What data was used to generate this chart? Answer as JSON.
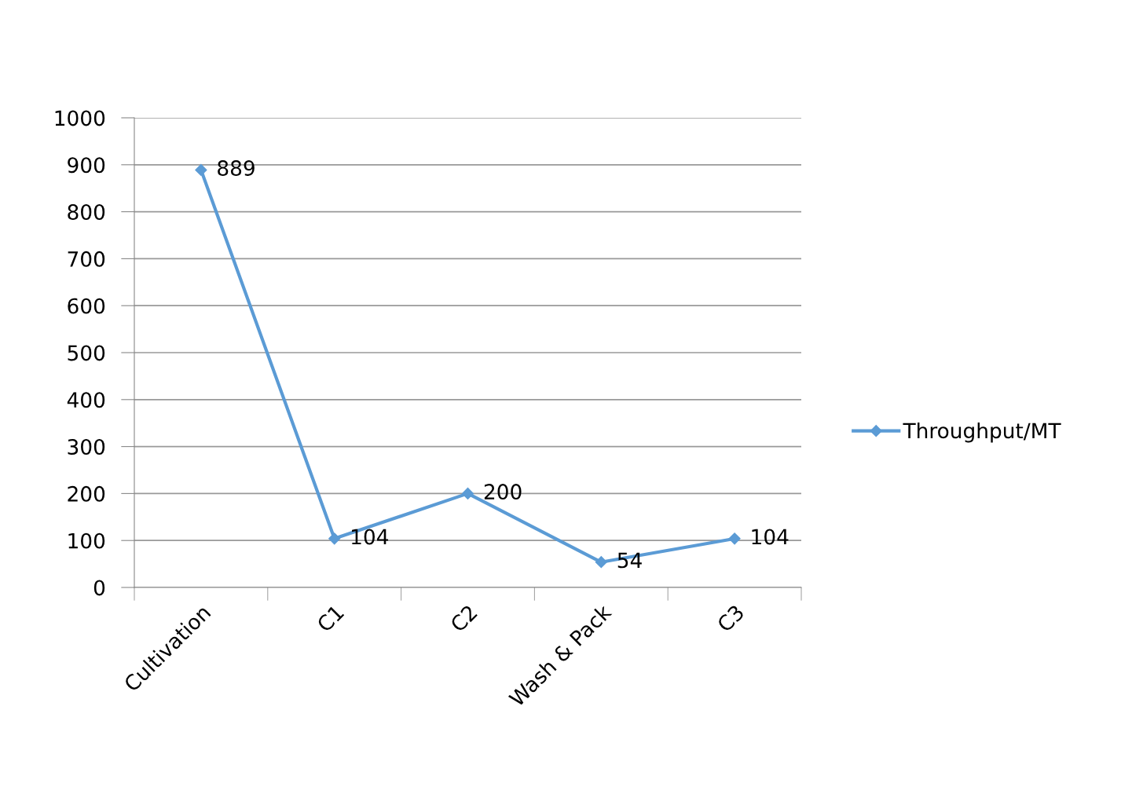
{
  "chart_data": {
    "type": "line",
    "categories": [
      "Cultivation",
      "C1",
      "C2",
      "Wash & Pack",
      "C3"
    ],
    "series": [
      {
        "name": "Throughput/MT",
        "color": "#5b9bd5",
        "values": [
          889,
          104,
          200,
          54,
          104
        ]
      }
    ],
    "ylim": [
      0,
      1000
    ],
    "yticks": [
      0,
      100,
      200,
      300,
      400,
      500,
      600,
      700,
      800,
      900,
      1000
    ],
    "grid": "y",
    "legend": "right",
    "marker": "diamond",
    "line_style": "solid",
    "data_labels": true
  }
}
